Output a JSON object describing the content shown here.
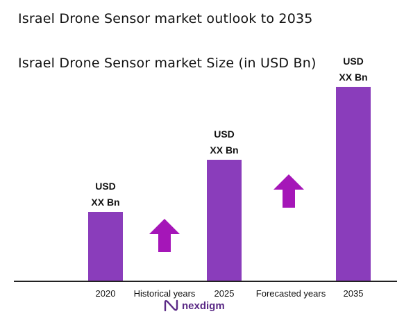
{
  "header": {
    "title": "Israel Drone Sensor market outlook to 2035",
    "subtitle": "Israel Drone Sensor market Size (in USD Bn)"
  },
  "phases": {
    "historical": "Historical years",
    "forecasted": "Forecasted years"
  },
  "logo": {
    "text": "nexdigm"
  },
  "colors": {
    "bar": "#8a3dbb",
    "arrow": "#a516b8",
    "axis": "#222222"
  },
  "chart_data": {
    "type": "bar",
    "categories": [
      "2020",
      "2025",
      "2035"
    ],
    "values": [
      1,
      1.75,
      2.8
    ],
    "value_labels": [
      [
        "USD",
        "XX Bn"
      ],
      [
        "USD",
        "XX Bn"
      ],
      [
        "USD",
        "XX Bn"
      ]
    ],
    "title": "Israel Drone Sensor market Size (in USD Bn)",
    "xlabel": "",
    "ylabel": "",
    "ylim": [
      0,
      3
    ],
    "grid": false,
    "legend": "none"
  }
}
